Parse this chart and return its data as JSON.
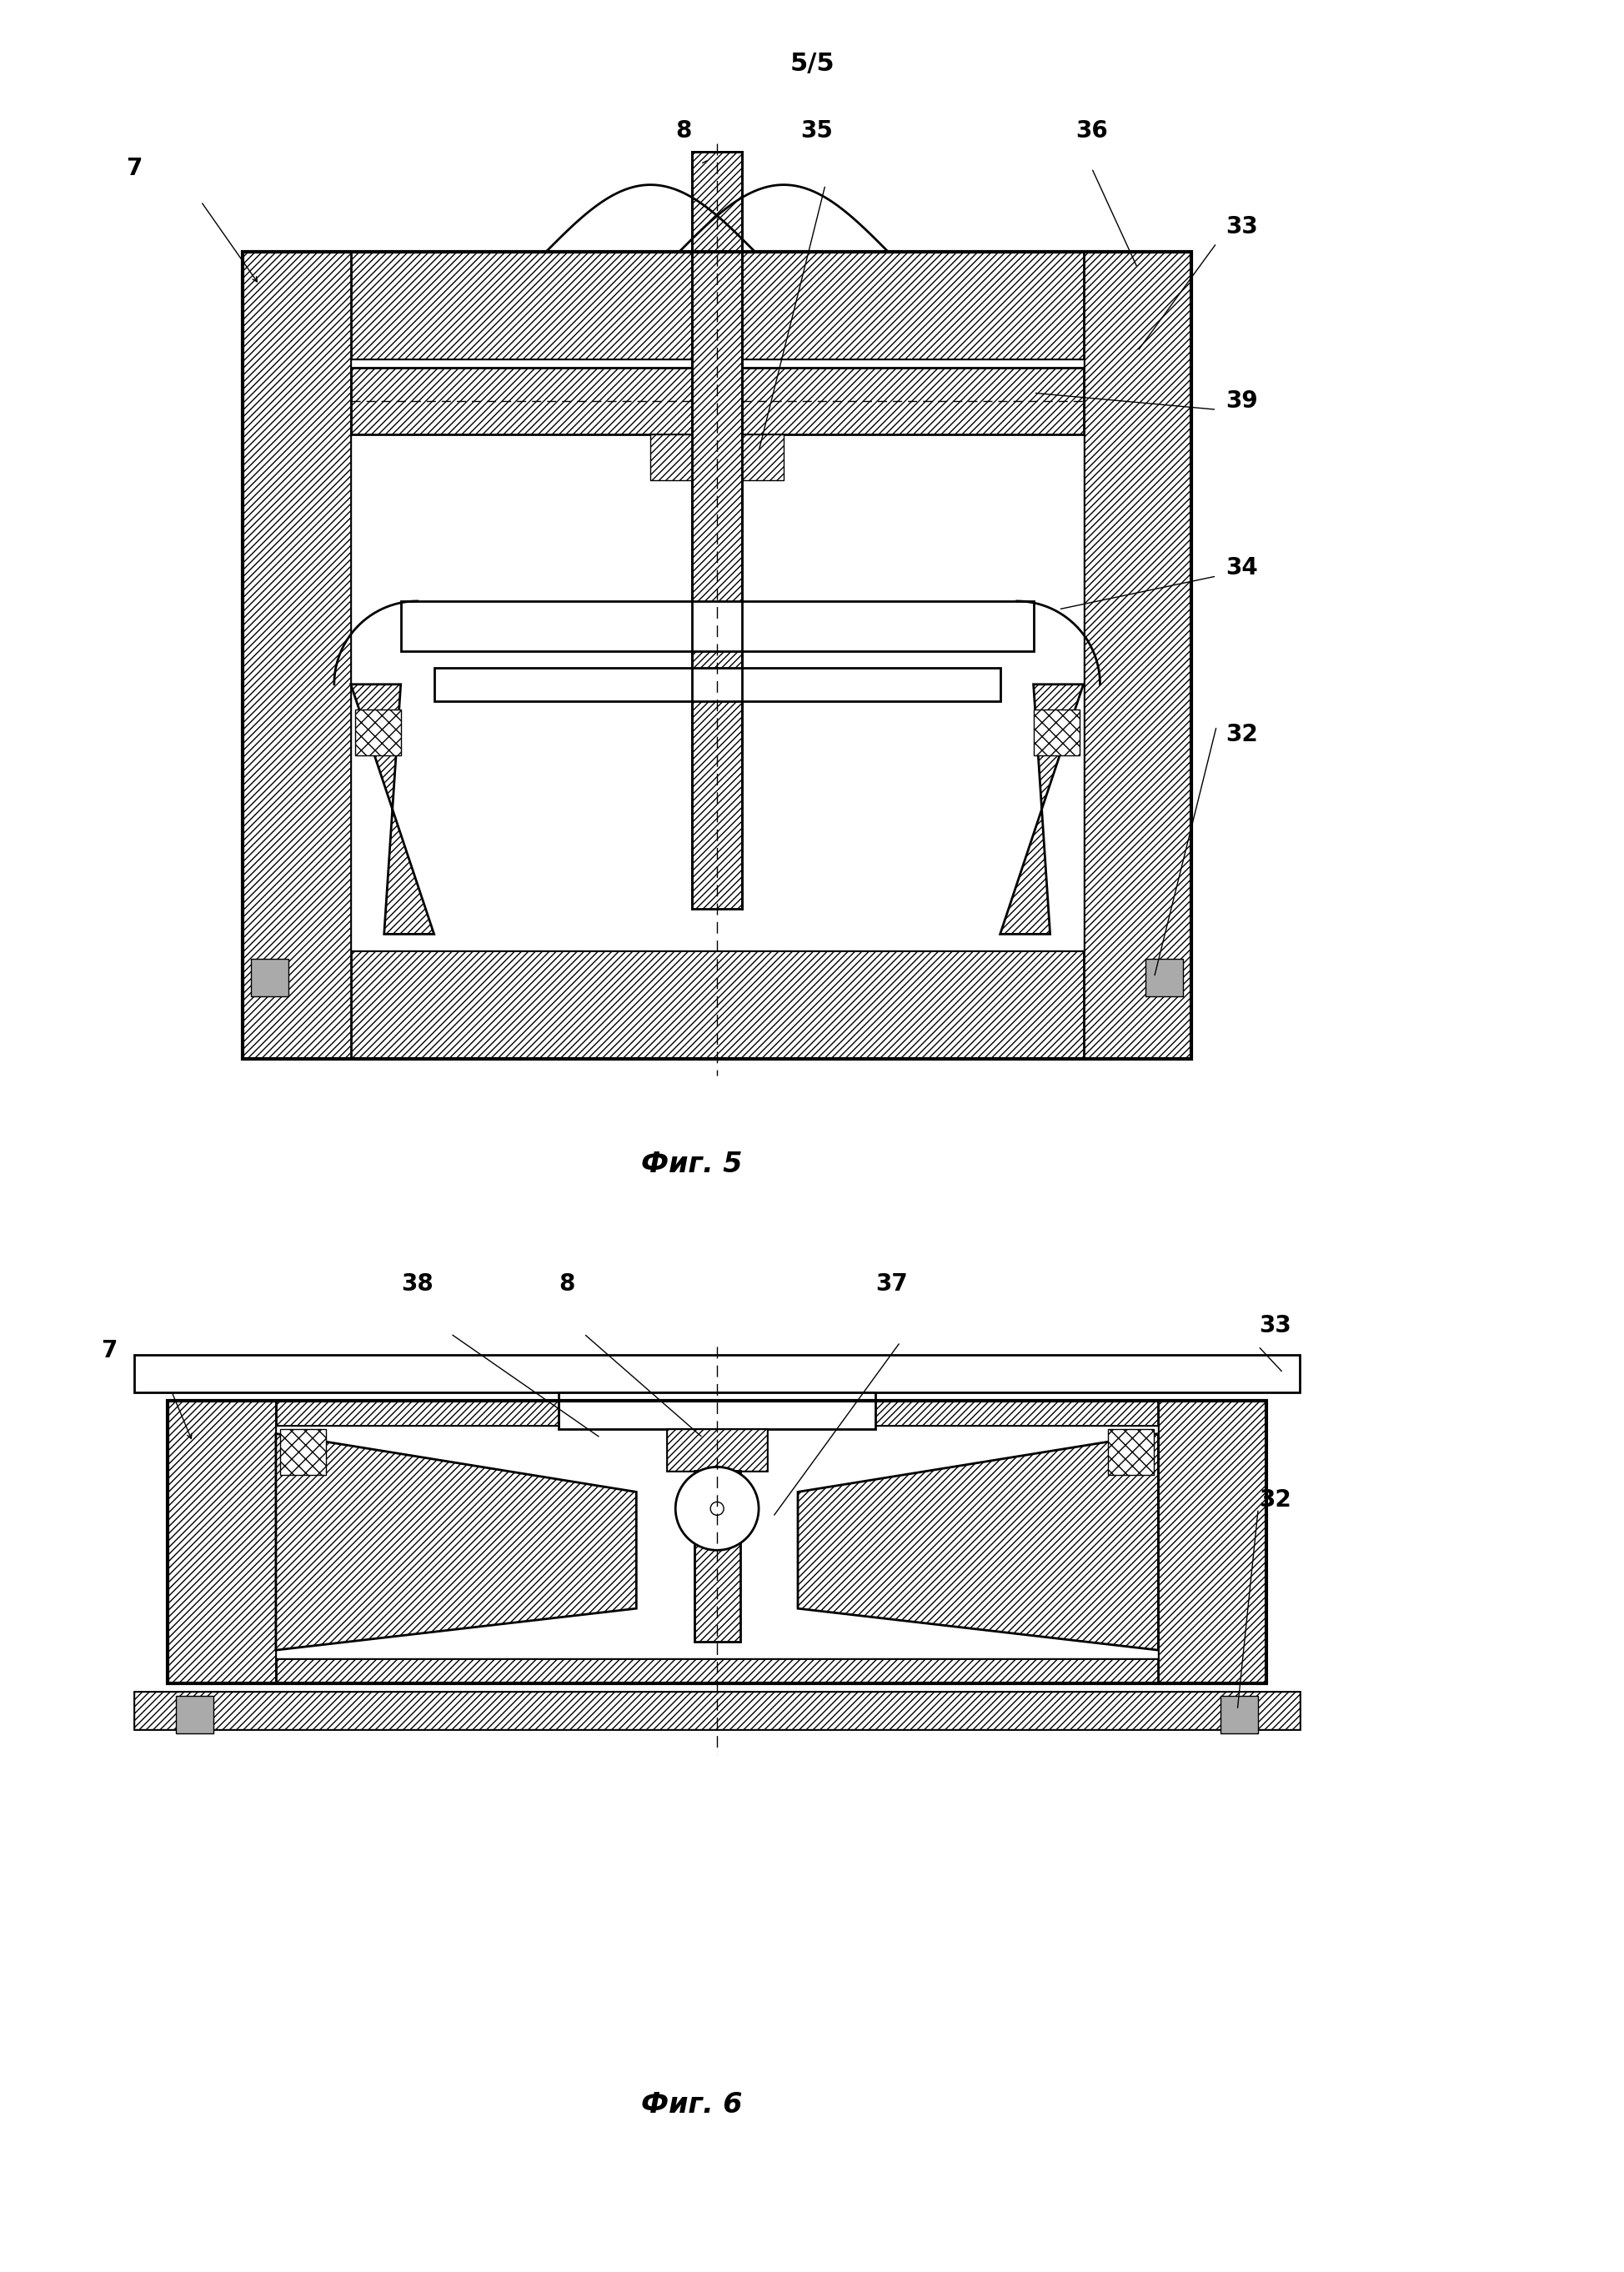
{
  "page_label": "5/5",
  "fig5_label": "Фиг. 5",
  "fig6_label": "Фиг. 6",
  "background_color": "#ffffff",
  "line_color": "#000000",
  "title_fontsize": 22,
  "label_fontsize": 20,
  "fig_label_fontsize": 24
}
